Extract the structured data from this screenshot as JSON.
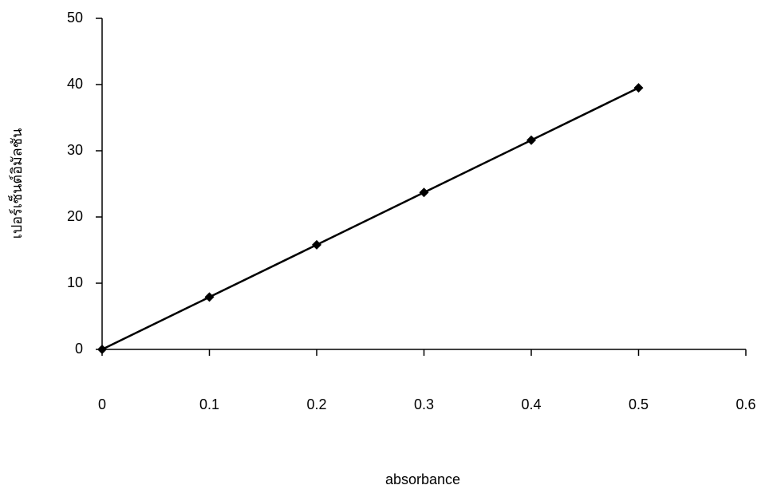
{
  "chart_data": {
    "type": "line",
    "x_label": "absorbance",
    "y_label": "เปอร์เซ็นต์อิมัลชัน",
    "x": [
      0,
      0.1,
      0.2,
      0.3,
      0.4,
      0.5
    ],
    "series": [
      {
        "color": "#000000",
        "values": [
          0,
          7.9,
          15.8,
          23.7,
          31.6,
          39.5
        ]
      }
    ],
    "xlim": [
      0,
      0.6
    ],
    "xticks": [
      0,
      0.1,
      0.2,
      0.3,
      0.4,
      0.5,
      0.6
    ],
    "ylim": [
      0,
      50
    ],
    "yticks": [
      0,
      10,
      20,
      30,
      40,
      50
    ],
    "grid": false,
    "marker": "diamond"
  }
}
